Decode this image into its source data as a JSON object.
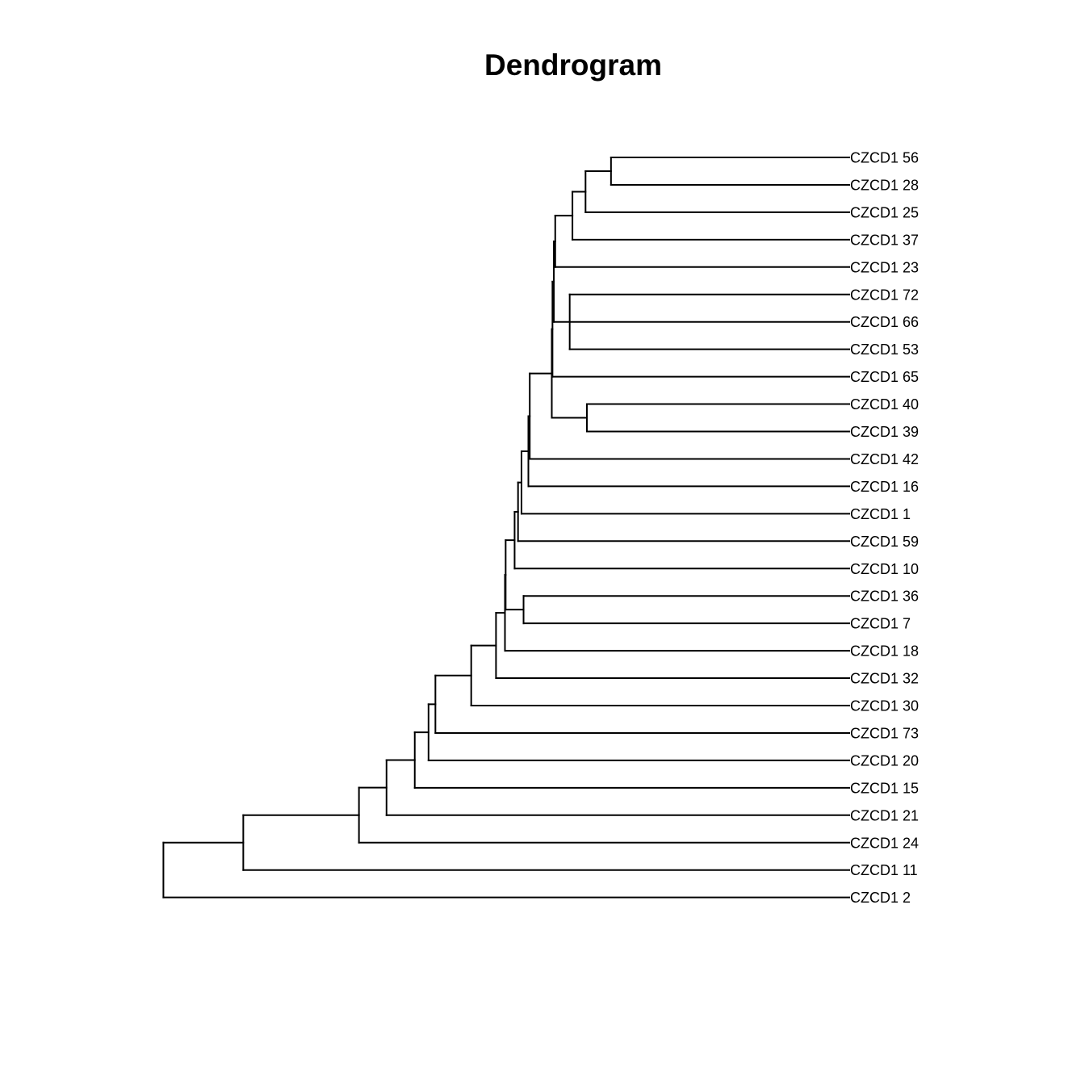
{
  "title": "Dendrogram",
  "dendrogram": {
    "orientation": "leaves-right",
    "line_color": "#000000",
    "labels": [
      "CZCD1 56",
      "CZCD1 28",
      "CZCD1 25",
      "CZCD1 37",
      "CZCD1 23",
      "CZCD1 72",
      "CZCD1 66",
      "CZCD1 53",
      "CZCD1 65",
      "CZCD1 40",
      "CZCD1 39",
      "CZCD1 42",
      "CZCD1 16",
      "CZCD1 1",
      "CZCD1 59",
      "CZCD1 10",
      "CZCD1 36",
      "CZCD1 7",
      "CZCD1 18",
      "CZCD1 32",
      "CZCD1 30",
      "CZCD1 73",
      "CZCD1 20",
      "CZCD1 15",
      "CZCD1 21",
      "CZCD1 24",
      "CZCD1 11",
      "CZCD1 2"
    ],
    "merges": [
      {
        "id": "m_56_28",
        "children": [
          "L0",
          "L1"
        ],
        "height": 34.6
      },
      {
        "id": "m_25",
        "children": [
          "m_56_28",
          "L2"
        ],
        "height": 38.3
      },
      {
        "id": "m_37",
        "children": [
          "m_25",
          "L3"
        ],
        "height": 40.2
      },
      {
        "id": "m_72_66_53",
        "children": [
          "L5",
          "L6",
          "L7"
        ],
        "height": 40.6
      },
      {
        "id": "m_40_39",
        "children": [
          "L9",
          "L10"
        ],
        "height": 38.1
      },
      {
        "id": "m_a",
        "children": [
          "m_37",
          "L4"
        ],
        "height": 42.7
      },
      {
        "id": "m_b",
        "children": [
          "m_a",
          "m_72_66_53"
        ],
        "height": 42.9
      },
      {
        "id": "m_c",
        "children": [
          "m_b",
          "L8"
        ],
        "height": 43.1
      },
      {
        "id": "m_d",
        "children": [
          "m_c",
          "m_40_39"
        ],
        "height": 43.2
      },
      {
        "id": "m_e",
        "children": [
          "m_d",
          "L11"
        ],
        "height": 46.4
      },
      {
        "id": "m_f",
        "children": [
          "m_e",
          "L12"
        ],
        "height": 46.6
      },
      {
        "id": "m_g",
        "children": [
          "m_f",
          "L13"
        ],
        "height": 47.6
      },
      {
        "id": "m_h",
        "children": [
          "m_g",
          "L14"
        ],
        "height": 48.1
      },
      {
        "id": "m_i",
        "children": [
          "m_h",
          "L15"
        ],
        "height": 48.6
      },
      {
        "id": "m_36_7",
        "children": [
          "L16",
          "L17"
        ],
        "height": 47.3
      },
      {
        "id": "m_j",
        "children": [
          "m_i",
          "m_36_7"
        ],
        "height": 49.9
      },
      {
        "id": "m_k",
        "children": [
          "m_j",
          "L18"
        ],
        "height": 50.0
      },
      {
        "id": "m_l",
        "children": [
          "m_k",
          "L19"
        ],
        "height": 51.3
      },
      {
        "id": "m_m",
        "children": [
          "m_l",
          "L20"
        ],
        "height": 54.9
      },
      {
        "id": "m_n",
        "children": [
          "m_m",
          "L21"
        ],
        "height": 60.1
      },
      {
        "id": "m_o",
        "children": [
          "m_n",
          "L22"
        ],
        "height": 61.1
      },
      {
        "id": "m_p",
        "children": [
          "m_o",
          "L23"
        ],
        "height": 63.1
      },
      {
        "id": "m_q",
        "children": [
          "m_p",
          "L24"
        ],
        "height": 67.2
      },
      {
        "id": "m_r",
        "children": [
          "m_q",
          "L25"
        ],
        "height": 71.2
      },
      {
        "id": "m_s",
        "children": [
          "m_r",
          "L26"
        ],
        "height": 88.0
      },
      {
        "id": "m_root",
        "children": [
          "m_s",
          "L27"
        ],
        "height": 99.6
      }
    ],
    "max_height": 100
  }
}
